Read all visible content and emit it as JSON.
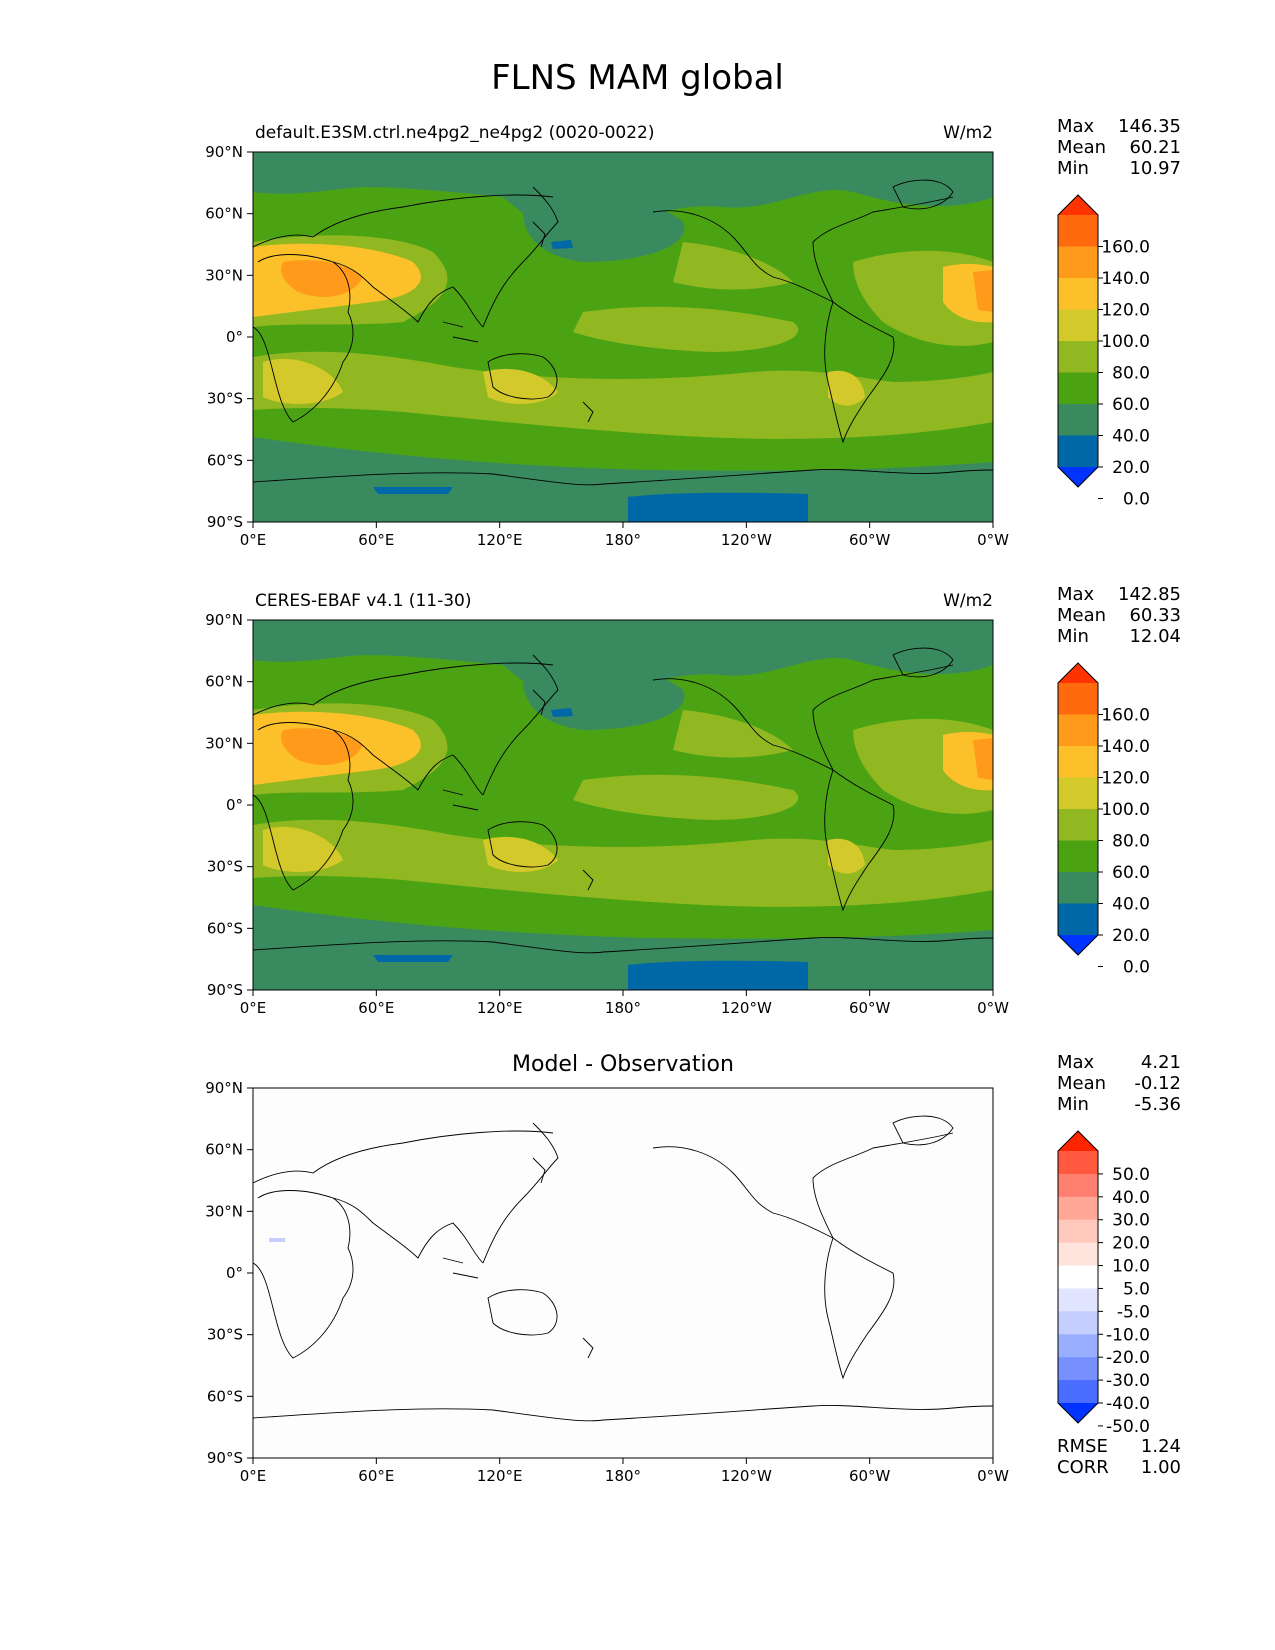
{
  "title": "FLNS MAM global",
  "lon_ticks": [
    "0°E",
    "60°E",
    "120°E",
    "180°",
    "120°W",
    "60°W",
    "0°W"
  ],
  "lat_ticks": [
    "90°N",
    "60°N",
    "30°N",
    "0°",
    "30°S",
    "60°S",
    "90°S"
  ],
  "panels": [
    {
      "name": "test",
      "left_title": "default.E3SM.ctrl.ne4pg2_ne4pg2 (0020-0022)",
      "units": "W/m2",
      "stats": {
        "Max": "146.35",
        "Mean": "60.21",
        "Min": "10.97"
      },
      "colorbar": {
        "levels": [
          "160.0",
          "140.0",
          "120.0",
          "100.0",
          "80.0",
          "60.0",
          "40.0",
          "20.0",
          "0.0"
        ],
        "colors": [
          "#ff3300",
          "#ff6a0e",
          "#ff9a1a",
          "#fcc12a",
          "#d3c92a",
          "#91b820",
          "#4ba314",
          "#3a8a60",
          "#0068a6",
          "#0033ff"
        ]
      }
    },
    {
      "name": "reference",
      "left_title": "CERES-EBAF v4.1 (11-30)",
      "units": "W/m2",
      "stats": {
        "Max": "142.85",
        "Mean": "60.33",
        "Min": "12.04"
      },
      "colorbar": {
        "levels": [
          "160.0",
          "140.0",
          "120.0",
          "100.0",
          "80.0",
          "60.0",
          "40.0",
          "20.0",
          "0.0"
        ],
        "colors": [
          "#ff3300",
          "#ff6a0e",
          "#ff9a1a",
          "#fcc12a",
          "#d3c92a",
          "#91b820",
          "#4ba314",
          "#3a8a60",
          "#0068a6",
          "#0033ff"
        ]
      }
    },
    {
      "name": "difference",
      "center_title": "Model - Observation",
      "stats": {
        "Max": "4.21",
        "Mean": "-0.12",
        "Min": "-5.36"
      },
      "extra_stats": {
        "RMSE": "1.24",
        "CORR": "1.00"
      },
      "colorbar": {
        "levels": [
          "50.0",
          "40.0",
          "30.0",
          "20.0",
          "10.0",
          "5.0",
          "-5.0",
          "-10.0",
          "-20.0",
          "-30.0",
          "-40.0",
          "-50.0"
        ],
        "colors": [
          "#ff2400",
          "#ff5a40",
          "#ff8070",
          "#ffa898",
          "#ffc8bc",
          "#ffe4de",
          "#ffffff",
          "#e0e4ff",
          "#c4ceff",
          "#9aaeff",
          "#7890ff",
          "#4a6cff",
          "#0033ff"
        ]
      }
    }
  ]
}
